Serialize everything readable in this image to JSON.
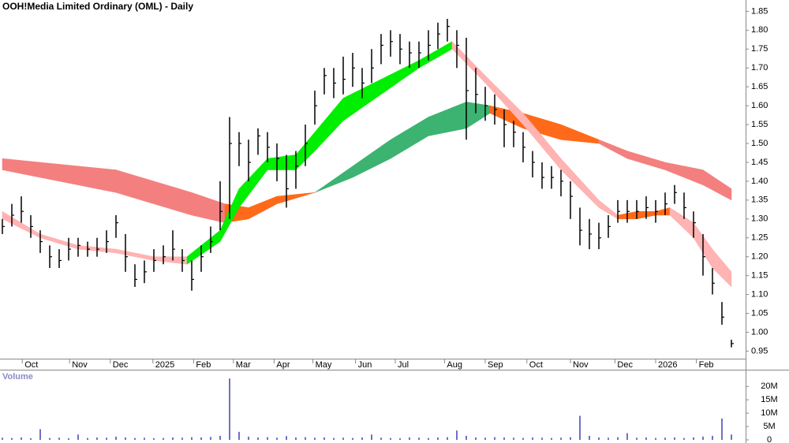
{
  "chart_data": {
    "type": "ohlc",
    "title": "OOH!Media Limited Ordinary (OML) - Daily",
    "color": "#000000",
    "x": [
      0,
      1,
      2,
      3,
      4,
      5,
      6,
      7,
      8,
      9,
      10,
      11,
      12,
      13,
      14,
      15,
      16,
      17,
      18,
      19,
      20,
      21,
      22,
      23,
      24,
      25,
      26,
      27,
      28,
      29,
      30,
      31,
      32,
      33,
      34,
      35,
      36,
      37,
      38,
      39,
      40,
      41,
      42,
      43,
      44,
      45,
      46,
      47,
      48,
      49,
      50,
      51,
      52,
      53,
      54,
      55,
      56,
      57,
      58,
      59,
      60,
      61,
      62,
      63,
      64,
      65,
      66,
      67,
      68,
      69,
      70,
      71,
      72,
      73,
      74,
      75,
      76,
      77
    ],
    "high": [
      1.3,
      1.34,
      1.36,
      1.31,
      1.27,
      1.23,
      1.22,
      1.25,
      1.25,
      1.24,
      1.25,
      1.27,
      1.31,
      1.26,
      1.18,
      1.19,
      1.22,
      1.23,
      1.27,
      1.22,
      1.19,
      1.23,
      1.28,
      1.4,
      1.57,
      1.53,
      1.51,
      1.54,
      1.53,
      1.5,
      1.47,
      1.48,
      1.55,
      1.64,
      1.7,
      1.7,
      1.73,
      1.74,
      1.7,
      1.75,
      1.79,
      1.8,
      1.79,
      1.77,
      1.77,
      1.8,
      1.82,
      1.83,
      1.8,
      1.78,
      1.7,
      1.65,
      1.63,
      1.59,
      1.56,
      1.53,
      1.48,
      1.45,
      1.44,
      1.43,
      1.4,
      1.33,
      1.3,
      1.29,
      1.31,
      1.35,
      1.35,
      1.35,
      1.36,
      1.35,
      1.37,
      1.39,
      1.37,
      1.32,
      1.26,
      1.17,
      1.08,
      0.98
    ],
    "low": [
      1.26,
      1.28,
      1.29,
      1.25,
      1.21,
      1.17,
      1.17,
      1.19,
      1.2,
      1.2,
      1.2,
      1.21,
      1.25,
      1.16,
      1.12,
      1.13,
      1.16,
      1.18,
      1.19,
      1.16,
      1.11,
      1.16,
      1.21,
      1.27,
      1.3,
      1.44,
      1.4,
      1.47,
      1.45,
      1.4,
      1.33,
      1.38,
      1.44,
      1.55,
      1.63,
      1.62,
      1.63,
      1.65,
      1.62,
      1.66,
      1.71,
      1.73,
      1.71,
      1.7,
      1.7,
      1.72,
      1.75,
      1.77,
      1.7,
      1.51,
      1.58,
      1.56,
      1.55,
      1.49,
      1.49,
      1.45,
      1.41,
      1.38,
      1.38,
      1.36,
      1.3,
      1.23,
      1.22,
      1.22,
      1.25,
      1.29,
      1.29,
      1.3,
      1.3,
      1.29,
      1.31,
      1.34,
      1.3,
      1.25,
      1.15,
      1.1,
      1.02,
      0.96
    ],
    "values": [
      1.28,
      1.31,
      1.32,
      1.28,
      1.24,
      1.2,
      1.19,
      1.22,
      1.23,
      1.22,
      1.22,
      1.24,
      1.29,
      1.2,
      1.14,
      1.16,
      1.19,
      1.2,
      1.22,
      1.19,
      1.14,
      1.2,
      1.24,
      1.32,
      1.5,
      1.5,
      1.45,
      1.52,
      1.49,
      1.46,
      1.38,
      1.44,
      1.5,
      1.6,
      1.68,
      1.66,
      1.67,
      1.7,
      1.66,
      1.7,
      1.76,
      1.77,
      1.75,
      1.74,
      1.74,
      1.76,
      1.79,
      1.81,
      1.76,
      1.64,
      1.63,
      1.6,
      1.59,
      1.55,
      1.53,
      1.49,
      1.45,
      1.41,
      1.41,
      1.4,
      1.36,
      1.27,
      1.26,
      1.25,
      1.28,
      1.32,
      1.32,
      1.32,
      1.33,
      1.32,
      1.34,
      1.37,
      1.33,
      1.29,
      1.2,
      1.13,
      1.04,
      0.97
    ],
    "ribbons": [
      {
        "color": "#f47f7f",
        "x": [
          0,
          4,
          8,
          12,
          16,
          20,
          23.5
        ],
        "upper": [
          1.46,
          1.45,
          1.44,
          1.43,
          1.4,
          1.37,
          1.34
        ],
        "lower": [
          1.43,
          1.41,
          1.39,
          1.37,
          1.34,
          1.31,
          1.29
        ]
      },
      {
        "color": "#ff6a1a",
        "x": [
          23.5,
          26,
          29,
          33
        ],
        "upper": [
          1.34,
          1.33,
          1.36,
          1.37
        ],
        "lower": [
          1.29,
          1.3,
          1.34,
          1.37
        ]
      },
      {
        "color": "#3cb371",
        "x": [
          33,
          37,
          41,
          45,
          49,
          51.5
        ],
        "upper": [
          1.37,
          1.44,
          1.51,
          1.57,
          1.61,
          1.6
        ],
        "lower": [
          1.37,
          1.41,
          1.46,
          1.52,
          1.54,
          1.58
        ]
      },
      {
        "color": "#ff6a1a",
        "x": [
          51.5,
          55,
          59,
          63
        ],
        "upper": [
          1.6,
          1.58,
          1.55,
          1.51
        ],
        "lower": [
          1.58,
          1.54,
          1.51,
          1.5
        ]
      },
      {
        "color": "#f47f7f",
        "x": [
          63,
          66,
          70,
          74,
          77
        ],
        "upper": [
          1.51,
          1.48,
          1.45,
          1.43,
          1.38
        ],
        "lower": [
          1.5,
          1.46,
          1.43,
          1.39,
          1.35
        ]
      },
      {
        "color": "#ffb3b3",
        "x": [
          0,
          4,
          8,
          12,
          16,
          19.5
        ],
        "upper": [
          1.32,
          1.26,
          1.23,
          1.22,
          1.2,
          1.2
        ],
        "lower": [
          1.3,
          1.25,
          1.22,
          1.21,
          1.19,
          1.18
        ]
      },
      {
        "color": "#00ee00",
        "x": [
          19.5,
          23,
          25,
          28,
          31,
          33,
          36,
          40,
          44,
          47.5
        ],
        "upper": [
          1.2,
          1.27,
          1.38,
          1.46,
          1.47,
          1.53,
          1.62,
          1.67,
          1.72,
          1.77
        ],
        "lower": [
          1.18,
          1.24,
          1.33,
          1.43,
          1.43,
          1.48,
          1.56,
          1.63,
          1.7,
          1.75
        ]
      },
      {
        "color": "#ffb3b3",
        "x": [
          47.5,
          51,
          55,
          59,
          63,
          65
        ],
        "upper": [
          1.77,
          1.68,
          1.58,
          1.46,
          1.35,
          1.31
        ],
        "lower": [
          1.75,
          1.66,
          1.55,
          1.43,
          1.33,
          1.3
        ]
      },
      {
        "color": "#ff6a1a",
        "x": [
          65,
          67,
          69,
          70.5
        ],
        "upper": [
          1.31,
          1.32,
          1.32,
          1.33
        ],
        "lower": [
          1.3,
          1.3,
          1.31,
          1.31
        ]
      },
      {
        "color": "#ffb3b3",
        "x": [
          70.5,
          73,
          75,
          77
        ],
        "upper": [
          1.33,
          1.29,
          1.22,
          1.16
        ],
        "lower": [
          1.31,
          1.25,
          1.17,
          1.12
        ]
      }
    ],
    "xlim": [
      -0.25,
      78.5
    ],
    "xticks": [
      {
        "value": 2.1,
        "label": "Oct"
      },
      {
        "value": 7.1,
        "label": "Nov"
      },
      {
        "value": 11.4,
        "label": "Dec"
      },
      {
        "value": 15.9,
        "label": "2025"
      },
      {
        "value": 20.2,
        "label": "Feb"
      },
      {
        "value": 24.4,
        "label": "Mar"
      },
      {
        "value": 28.7,
        "label": "Apr"
      },
      {
        "value": 32.8,
        "label": "May"
      },
      {
        "value": 37.3,
        "label": "Jun"
      },
      {
        "value": 41.5,
        "label": "Jul"
      },
      {
        "value": 46.7,
        "label": "Aug"
      },
      {
        "value": 51,
        "label": "Sep"
      },
      {
        "value": 55.4,
        "label": "Oct"
      },
      {
        "value": 60,
        "label": "Nov"
      },
      {
        "value": 64.7,
        "label": "Dec"
      },
      {
        "value": 69,
        "label": "2026"
      },
      {
        "value": 73.3,
        "label": "Feb"
      }
    ],
    "ylim": [
      0.93,
      1.88
    ],
    "yticks": [
      1.85,
      {
        "value": 1.8,
        "label": "1.80"
      },
      1.75,
      {
        "value": 1.7,
        "label": "1.70"
      },
      1.65,
      {
        "value": 1.6,
        "label": "1.60"
      },
      1.55,
      {
        "value": 1.5,
        "label": "1.50"
      },
      1.45,
      {
        "value": 1.4,
        "label": "1.40"
      },
      1.35,
      {
        "value": 1.3,
        "label": "1.30"
      },
      1.25,
      {
        "value": 1.2,
        "label": "1.20"
      },
      1.15,
      {
        "value": 1.1,
        "label": "1.10"
      },
      1.05,
      {
        "value": 1,
        "label": "1.00"
      },
      0.95
    ],
    "volume": {
      "label": "Volume",
      "color": "#7070c8",
      "values": [
        800000,
        700000,
        900000,
        600000,
        4000000,
        700000,
        800000,
        600000,
        2000000,
        700000,
        900000,
        800000,
        1200000,
        900000,
        700000,
        800000,
        600000,
        700000,
        900000,
        800000,
        1000000,
        900000,
        1100000,
        1500000,
        23000000,
        3000000,
        1200000,
        900000,
        1000000,
        800000,
        1400000,
        900000,
        1000000,
        800000,
        900000,
        700000,
        800000,
        700000,
        900000,
        2000000,
        800000,
        700000,
        600000,
        900000,
        800000,
        700000,
        900000,
        1000000,
        3500000,
        1500000,
        900000,
        800000,
        1000000,
        900000,
        800000,
        700000,
        900000,
        800000,
        700000,
        800000,
        1000000,
        9000000,
        1500000,
        900000,
        800000,
        1000000,
        2500000,
        800000,
        900000,
        700000,
        800000,
        900000,
        700000,
        900000,
        1200000,
        1500000,
        8000000,
        2000000
      ],
      "ylim": [
        0,
        26000000
      ],
      "yticks": [
        0,
        {
          "value": 5000000,
          "label": "5M"
        },
        {
          "value": 10000000,
          "label": "10M"
        },
        {
          "value": 15000000,
          "label": "15M"
        },
        {
          "value": 20000000,
          "label": "20M"
        }
      ]
    }
  }
}
